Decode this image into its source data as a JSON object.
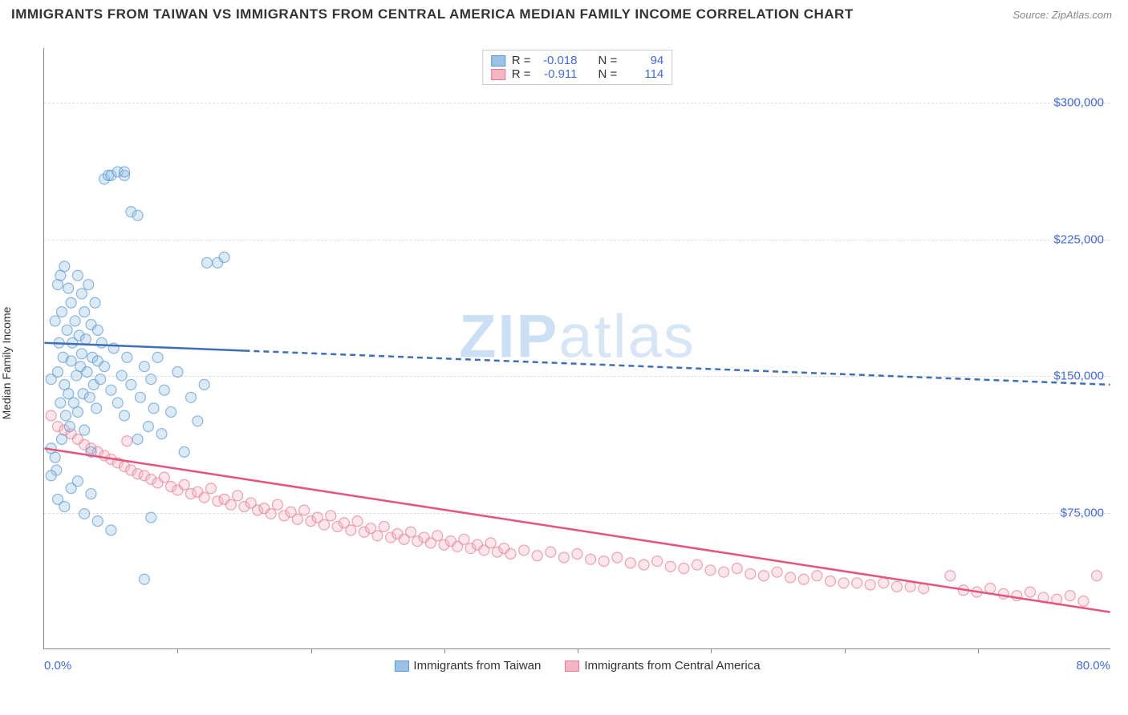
{
  "header": {
    "title": "IMMIGRANTS FROM TAIWAN VS IMMIGRANTS FROM CENTRAL AMERICA MEDIAN FAMILY INCOME CORRELATION CHART",
    "source_label": "Source: ",
    "source_value": "ZipAtlas.com"
  },
  "chart": {
    "type": "scatter",
    "y_axis_label": "Median Family Income",
    "xlim": [
      0,
      80
    ],
    "ylim": [
      0,
      330000
    ],
    "x_min_label": "0.0%",
    "x_max_label": "80.0%",
    "y_ticks": [
      75000,
      150000,
      225000,
      300000
    ],
    "y_tick_labels": [
      "$75,000",
      "$150,000",
      "$225,000",
      "$300,000"
    ],
    "x_tick_positions": [
      10,
      20,
      30,
      40,
      50,
      60,
      70
    ],
    "grid_color": "#dddddd",
    "background_color": "#ffffff",
    "axis_color": "#888888",
    "label_color_numeric": "#4169e1",
    "point_radius": 6.5,
    "watermark_main": "ZIP",
    "watermark_sub": "atlas"
  },
  "series": {
    "taiwan": {
      "label": "Immigrants from Taiwan",
      "color_fill": "#9bc2e6",
      "color_stroke": "#5b9bd5",
      "r_value": "-0.018",
      "n_value": "94",
      "trend": {
        "x1": 0,
        "y1": 168000,
        "x2": 80,
        "y2": 145000,
        "solid_until_x": 15,
        "color": "#3e6fb5",
        "width": 2.5,
        "dash": "7 5"
      },
      "points": [
        [
          0.5,
          110000
        ],
        [
          0.5,
          148000
        ],
        [
          0.8,
          105000
        ],
        [
          0.8,
          180000
        ],
        [
          0.9,
          98000
        ],
        [
          1.0,
          152000
        ],
        [
          1.0,
          200000
        ],
        [
          1.1,
          168000
        ],
        [
          1.2,
          135000
        ],
        [
          1.2,
          205000
        ],
        [
          1.3,
          115000
        ],
        [
          1.3,
          185000
        ],
        [
          1.4,
          160000
        ],
        [
          1.5,
          145000
        ],
        [
          1.5,
          210000
        ],
        [
          1.6,
          128000
        ],
        [
          1.7,
          175000
        ],
        [
          1.8,
          140000
        ],
        [
          1.8,
          198000
        ],
        [
          1.9,
          122000
        ],
        [
          2.0,
          158000
        ],
        [
          2.0,
          190000
        ],
        [
          2.1,
          168000
        ],
        [
          2.2,
          135000
        ],
        [
          2.3,
          180000
        ],
        [
          2.4,
          150000
        ],
        [
          2.5,
          205000
        ],
        [
          2.5,
          130000
        ],
        [
          2.6,
          172000
        ],
        [
          2.7,
          155000
        ],
        [
          2.8,
          195000
        ],
        [
          2.8,
          162000
        ],
        [
          2.9,
          140000
        ],
        [
          3.0,
          185000
        ],
        [
          3.0,
          120000
        ],
        [
          3.1,
          170000
        ],
        [
          3.2,
          152000
        ],
        [
          3.3,
          200000
        ],
        [
          3.4,
          138000
        ],
        [
          3.5,
          178000
        ],
        [
          3.5,
          108000
        ],
        [
          3.6,
          160000
        ],
        [
          3.7,
          145000
        ],
        [
          3.8,
          190000
        ],
        [
          3.9,
          132000
        ],
        [
          4.0,
          175000
        ],
        [
          4.0,
          158000
        ],
        [
          4.2,
          148000
        ],
        [
          4.3,
          168000
        ],
        [
          4.5,
          155000
        ],
        [
          4.5,
          258000
        ],
        [
          4.8,
          260000
        ],
        [
          5.0,
          142000
        ],
        [
          5.0,
          260000
        ],
        [
          5.2,
          165000
        ],
        [
          5.5,
          135000
        ],
        [
          5.5,
          262000
        ],
        [
          5.8,
          150000
        ],
        [
          6.0,
          128000
        ],
        [
          6.0,
          260000
        ],
        [
          6.0,
          262000
        ],
        [
          6.2,
          160000
        ],
        [
          6.5,
          145000
        ],
        [
          6.5,
          240000
        ],
        [
          7.0,
          115000
        ],
        [
          7.0,
          238000
        ],
        [
          7.2,
          138000
        ],
        [
          7.5,
          155000
        ],
        [
          7.8,
          122000
        ],
        [
          8.0,
          148000
        ],
        [
          8.2,
          132000
        ],
        [
          8.5,
          160000
        ],
        [
          8.8,
          118000
        ],
        [
          9.0,
          142000
        ],
        [
          9.5,
          130000
        ],
        [
          10.0,
          152000
        ],
        [
          10.5,
          108000
        ],
        [
          11.0,
          138000
        ],
        [
          11.5,
          125000
        ],
        [
          12.0,
          145000
        ],
        [
          12.2,
          212000
        ],
        [
          13.0,
          212000
        ],
        [
          13.5,
          215000
        ],
        [
          0.5,
          95000
        ],
        [
          1.0,
          82000
        ],
        [
          1.5,
          78000
        ],
        [
          2.0,
          88000
        ],
        [
          2.5,
          92000
        ],
        [
          3.0,
          74000
        ],
        [
          3.5,
          85000
        ],
        [
          4.0,
          70000
        ],
        [
          5.0,
          65000
        ],
        [
          7.5,
          38000
        ],
        [
          8.0,
          72000
        ]
      ]
    },
    "central_america": {
      "label": "Immigrants from Central America",
      "color_fill": "#f4b6c2",
      "color_stroke": "#e87a9a",
      "r_value": "-0.911",
      "n_value": "114",
      "trend": {
        "x1": 0,
        "y1": 110000,
        "x2": 80,
        "y2": 20000,
        "color": "#e6537c",
        "width": 2.5
      },
      "points": [
        [
          0.5,
          128000
        ],
        [
          1.0,
          122000
        ],
        [
          1.5,
          120000
        ],
        [
          2.0,
          118000
        ],
        [
          2.5,
          115000
        ],
        [
          3.0,
          112000
        ],
        [
          3.5,
          110000
        ],
        [
          4.0,
          108000
        ],
        [
          4.5,
          106000
        ],
        [
          5.0,
          104000
        ],
        [
          5.5,
          102000
        ],
        [
          6.0,
          100000
        ],
        [
          6.2,
          114000
        ],
        [
          6.5,
          98000
        ],
        [
          7.0,
          96000
        ],
        [
          7.5,
          95000
        ],
        [
          8.0,
          93000
        ],
        [
          8.5,
          91000
        ],
        [
          9.0,
          94000
        ],
        [
          9.5,
          89000
        ],
        [
          10.0,
          87000
        ],
        [
          10.5,
          90000
        ],
        [
          11.0,
          85000
        ],
        [
          11.5,
          86000
        ],
        [
          12.0,
          83000
        ],
        [
          12.5,
          88000
        ],
        [
          13.0,
          81000
        ],
        [
          13.5,
          82000
        ],
        [
          14.0,
          79000
        ],
        [
          14.5,
          84000
        ],
        [
          15.0,
          78000
        ],
        [
          15.5,
          80000
        ],
        [
          16.0,
          76000
        ],
        [
          16.5,
          77000
        ],
        [
          17.0,
          74000
        ],
        [
          17.5,
          79000
        ],
        [
          18.0,
          73000
        ],
        [
          18.5,
          75000
        ],
        [
          19.0,
          71000
        ],
        [
          19.5,
          76000
        ],
        [
          20.0,
          70000
        ],
        [
          20.5,
          72000
        ],
        [
          21.0,
          68000
        ],
        [
          21.5,
          73000
        ],
        [
          22.0,
          67000
        ],
        [
          22.5,
          69000
        ],
        [
          23.0,
          65000
        ],
        [
          23.5,
          70000
        ],
        [
          24.0,
          64000
        ],
        [
          24.5,
          66000
        ],
        [
          25.0,
          62000
        ],
        [
          25.5,
          67000
        ],
        [
          26.0,
          61000
        ],
        [
          26.5,
          63000
        ],
        [
          27.0,
          60000
        ],
        [
          27.5,
          64000
        ],
        [
          28.0,
          59000
        ],
        [
          28.5,
          61000
        ],
        [
          29.0,
          58000
        ],
        [
          29.5,
          62000
        ],
        [
          30.0,
          57000
        ],
        [
          30.5,
          59000
        ],
        [
          31.0,
          56000
        ],
        [
          31.5,
          60000
        ],
        [
          32.0,
          55000
        ],
        [
          32.5,
          57000
        ],
        [
          33.0,
          54000
        ],
        [
          33.5,
          58000
        ],
        [
          34.0,
          53000
        ],
        [
          34.5,
          55000
        ],
        [
          35.0,
          52000
        ],
        [
          36.0,
          54000
        ],
        [
          37.0,
          51000
        ],
        [
          38.0,
          53000
        ],
        [
          39.0,
          50000
        ],
        [
          40.0,
          52000
        ],
        [
          41.0,
          49000
        ],
        [
          42.0,
          48000
        ],
        [
          43.0,
          50000
        ],
        [
          44.0,
          47000
        ],
        [
          45.0,
          46000
        ],
        [
          46.0,
          48000
        ],
        [
          47.0,
          45000
        ],
        [
          48.0,
          44000
        ],
        [
          49.0,
          46000
        ],
        [
          50.0,
          43000
        ],
        [
          51.0,
          42000
        ],
        [
          52.0,
          44000
        ],
        [
          53.0,
          41000
        ],
        [
          54.0,
          40000
        ],
        [
          55.0,
          42000
        ],
        [
          56.0,
          39000
        ],
        [
          57.0,
          38000
        ],
        [
          58.0,
          40000
        ],
        [
          59.0,
          37000
        ],
        [
          60.0,
          36000
        ],
        [
          61.0,
          36000
        ],
        [
          62.0,
          35000
        ],
        [
          63.0,
          36000
        ],
        [
          64.0,
          34000
        ],
        [
          65.0,
          34000
        ],
        [
          66.0,
          33000
        ],
        [
          68.0,
          40000
        ],
        [
          69.0,
          32000
        ],
        [
          70.0,
          31000
        ],
        [
          71.0,
          33000
        ],
        [
          72.0,
          30000
        ],
        [
          73.0,
          29000
        ],
        [
          74.0,
          31000
        ],
        [
          75.0,
          28000
        ],
        [
          76.0,
          27000
        ],
        [
          77.0,
          29000
        ],
        [
          78.0,
          26000
        ],
        [
          79.0,
          40000
        ]
      ]
    }
  },
  "legend_top": {
    "r_label": "R =",
    "n_label": "N ="
  }
}
